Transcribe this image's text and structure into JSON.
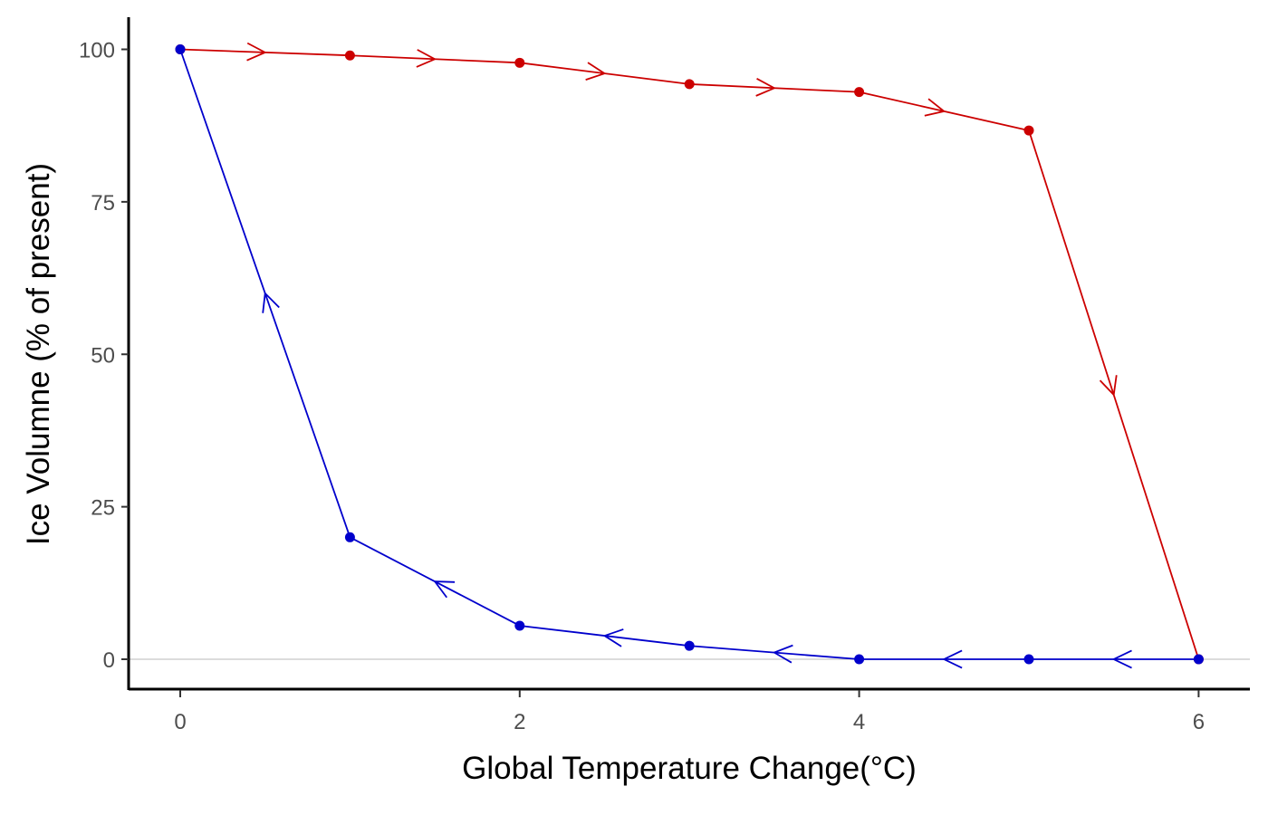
{
  "chart_data": {
    "type": "line",
    "title": "",
    "xlabel": "Global Temperature Change(°C)",
    "ylabel": "Ice Volumne (% of present)",
    "xlim": [
      -0.3,
      6.3
    ],
    "ylim": [
      -5,
      105
    ],
    "x_ticks": [
      0,
      2,
      4,
      6
    ],
    "y_ticks": [
      0,
      25,
      50,
      75,
      100
    ],
    "x_tick_labels": [
      "0",
      "2",
      "4",
      "6"
    ],
    "y_tick_labels": [
      "0",
      "25",
      "50",
      "75",
      "100"
    ],
    "grid": false,
    "reference_line_y": 0,
    "series": [
      {
        "direction": "forward",
        "color": "#cc0000",
        "x": [
          0,
          1,
          2,
          3,
          4,
          5,
          6
        ],
        "y": [
          100,
          99,
          97.8,
          94.3,
          93,
          86.7,
          0
        ]
      },
      {
        "direction": "backward",
        "color": "#0000cc",
        "x": [
          6,
          5,
          4,
          3,
          2,
          1,
          0
        ],
        "y": [
          0,
          0,
          0,
          2.2,
          5.5,
          20,
          100
        ]
      }
    ]
  }
}
